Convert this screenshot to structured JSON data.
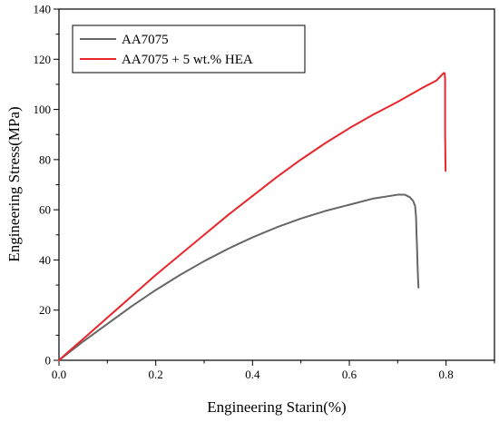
{
  "chart_data": {
    "type": "line",
    "title": "",
    "xlabel": "Engineering Starin(%)",
    "ylabel": "Engineering Stress(MPa)",
    "xlim": [
      0.0,
      0.9
    ],
    "ylim": [
      0,
      140
    ],
    "xticks": [
      0.0,
      0.2,
      0.4,
      0.6,
      0.8
    ],
    "xtick_labels": [
      "0.0",
      "0.2",
      "0.4",
      "0.6",
      "0.8"
    ],
    "yticks": [
      0,
      20,
      40,
      60,
      80,
      100,
      120,
      140
    ],
    "ytick_labels": [
      "0",
      "20",
      "40",
      "60",
      "80",
      "100",
      "120",
      "140"
    ],
    "grid": false,
    "legend_position": "top-left",
    "series": [
      {
        "name": "AA7075",
        "color": "#666666",
        "x": [
          0.0,
          0.02,
          0.05,
          0.1,
          0.15,
          0.2,
          0.25,
          0.3,
          0.35,
          0.4,
          0.45,
          0.5,
          0.55,
          0.6,
          0.65,
          0.7,
          0.715,
          0.725,
          0.732,
          0.736,
          0.738,
          0.739,
          0.74,
          0.741,
          0.742,
          0.743
        ],
        "y": [
          0.0,
          3.0,
          7.5,
          14.5,
          21.5,
          28.0,
          34.0,
          39.5,
          44.5,
          49.0,
          53.0,
          56.5,
          59.5,
          62.0,
          64.5,
          66.0,
          66.0,
          65.0,
          63.5,
          61.5,
          57.0,
          50.0,
          45.0,
          38.0,
          33.0,
          29.0
        ]
      },
      {
        "name": "AA7075 + 5 wt.% HEA",
        "color": "#e8262b",
        "x": [
          0.0,
          0.02,
          0.05,
          0.1,
          0.15,
          0.2,
          0.25,
          0.3,
          0.35,
          0.4,
          0.45,
          0.5,
          0.55,
          0.6,
          0.65,
          0.7,
          0.75,
          0.78,
          0.79,
          0.795,
          0.797,
          0.798,
          0.798,
          0.799
        ],
        "y": [
          0.0,
          3.5,
          8.5,
          17.0,
          25.5,
          34.0,
          42.0,
          50.0,
          58.0,
          65.5,
          73.0,
          80.0,
          86.5,
          92.5,
          98.0,
          103.0,
          108.5,
          111.5,
          113.5,
          114.5,
          114.5,
          112.0,
          90.0,
          75.5
        ]
      }
    ]
  }
}
